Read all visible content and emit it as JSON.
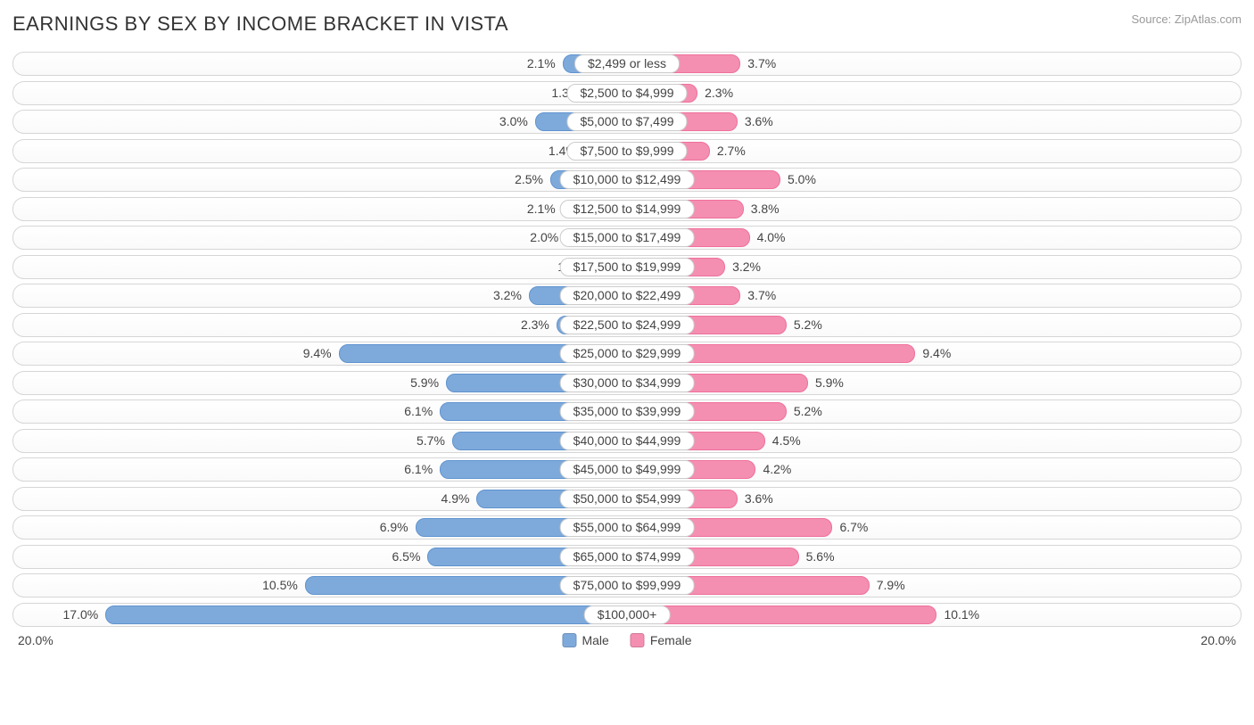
{
  "header": {
    "title": "EARNINGS BY SEX BY INCOME BRACKET IN VISTA",
    "source": "Source: ZipAtlas.com"
  },
  "chart": {
    "type": "diverging-bar",
    "axis_max_percent": 20.0,
    "axis_left_label": "20.0%",
    "axis_right_label": "20.0%",
    "track_border_color": "#d6d6d6",
    "track_bg_top": "#ffffff",
    "track_bg_bottom": "#fafafa",
    "text_color": "#444444",
    "badge_bg": "#ffffff",
    "badge_border": "#cccccc",
    "series": {
      "male": {
        "label": "Male",
        "fill": "#7eaadb",
        "border": "#5f93cf"
      },
      "female": {
        "label": "Female",
        "fill": "#f48fb1",
        "border": "#ef6f9c"
      }
    },
    "categories": [
      {
        "label": "$2,499 or less",
        "male": 2.1,
        "female": 3.7
      },
      {
        "label": "$2,500 to $4,999",
        "male": 1.3,
        "female": 2.3
      },
      {
        "label": "$5,000 to $7,499",
        "male": 3.0,
        "female": 3.6
      },
      {
        "label": "$7,500 to $9,999",
        "male": 1.4,
        "female": 2.7
      },
      {
        "label": "$10,000 to $12,499",
        "male": 2.5,
        "female": 5.0
      },
      {
        "label": "$12,500 to $14,999",
        "male": 2.1,
        "female": 3.8
      },
      {
        "label": "$15,000 to $17,499",
        "male": 2.0,
        "female": 4.0
      },
      {
        "label": "$17,500 to $19,999",
        "male": 1.1,
        "female": 3.2
      },
      {
        "label": "$20,000 to $22,499",
        "male": 3.2,
        "female": 3.7
      },
      {
        "label": "$22,500 to $24,999",
        "male": 2.3,
        "female": 5.2
      },
      {
        "label": "$25,000 to $29,999",
        "male": 9.4,
        "female": 9.4
      },
      {
        "label": "$30,000 to $34,999",
        "male": 5.9,
        "female": 5.9
      },
      {
        "label": "$35,000 to $39,999",
        "male": 6.1,
        "female": 5.2
      },
      {
        "label": "$40,000 to $44,999",
        "male": 5.7,
        "female": 4.5
      },
      {
        "label": "$45,000 to $49,999",
        "male": 6.1,
        "female": 4.2
      },
      {
        "label": "$50,000 to $54,999",
        "male": 4.9,
        "female": 3.6
      },
      {
        "label": "$55,000 to $64,999",
        "male": 6.9,
        "female": 6.7
      },
      {
        "label": "$65,000 to $74,999",
        "male": 6.5,
        "female": 5.6
      },
      {
        "label": "$75,000 to $99,999",
        "male": 10.5,
        "female": 7.9
      },
      {
        "label": "$100,000+",
        "male": 17.0,
        "female": 10.1
      }
    ]
  }
}
